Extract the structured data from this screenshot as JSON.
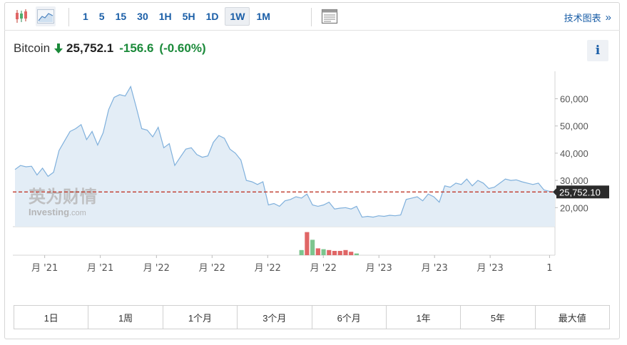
{
  "toolbar": {
    "intervals": [
      "1",
      "5",
      "15",
      "30",
      "1H",
      "5H",
      "1D",
      "1W",
      "1M"
    ],
    "active_interval": "1W",
    "tech_chart_label": "技术图表",
    "tech_chart_arrow": "»"
  },
  "quote": {
    "name": "Bitcoin",
    "price": "25,752.1",
    "change": "-156.6",
    "change_pct": "(-0.60%)",
    "direction": "down"
  },
  "info_label": "i",
  "colors": {
    "accent": "#1a5ea7",
    "down": "#1b8a3a",
    "line": "#7fb0dc",
    "area": "#e3edf6",
    "ref_line": "#c0392b",
    "vol_up": "#7cc58e",
    "vol_down": "#e06666"
  },
  "chart_data": {
    "type": "area",
    "y_unit_ticks": [
      "60,000",
      "50,000",
      "40,000",
      "30,000",
      "20,000"
    ],
    "y_tick_values": [
      60000,
      50000,
      40000,
      30000,
      20000
    ],
    "ylim": [
      13000,
      68000
    ],
    "current_value_label": "25,752.10",
    "current_value": 25752.1,
    "x_tick_labels": [
      "月 '21",
      "月 '21",
      "月 '22",
      "月 '22",
      "月 '22",
      "月 '22",
      "月 '23",
      "月 '23",
      "月 '23",
      "1"
    ],
    "x_tick_positions": [
      0.055,
      0.158,
      0.262,
      0.365,
      0.468,
      0.571,
      0.674,
      0.777,
      0.88,
      0.99
    ],
    "grid": false,
    "watermark": {
      "cn": "英为财情",
      "en_main": "Investing",
      "en_suffix": ".com"
    },
    "series": [
      {
        "values": [
          34000,
          35500,
          35000,
          35200,
          32000,
          34500,
          31500,
          33000,
          41000,
          44500,
          48000,
          49000,
          50500,
          45000,
          48000,
          43000,
          47500,
          56000,
          60500,
          61500,
          61000,
          64500,
          57000,
          49000,
          48500,
          46000,
          49500,
          42000,
          43500,
          35500,
          38500,
          41500,
          42000,
          39500,
          38500,
          39000,
          44000,
          46500,
          45500,
          41500,
          40000,
          37500,
          30000,
          29500,
          28500,
          29500,
          21000,
          21500,
          20500,
          22500,
          23000,
          24000,
          23500,
          25000,
          21000,
          20500,
          21000,
          22000,
          19500,
          19800,
          20000,
          19500,
          20500,
          16500,
          16800,
          16500,
          17000,
          16800,
          17200,
          17000,
          17300,
          23000,
          23500,
          24000,
          22500,
          25000,
          24000,
          22000,
          28000,
          27500,
          29000,
          28500,
          30500,
          28000,
          30000,
          29000,
          27000,
          27500,
          29000,
          30500,
          30000,
          30200,
          29500,
          29000,
          28500,
          29000,
          26500,
          26000,
          25752
        ]
      }
    ],
    "volume": [
      {
        "i": 52,
        "v": 6,
        "up": true
      },
      {
        "i": 53,
        "v": 27,
        "up": false
      },
      {
        "i": 54,
        "v": 18,
        "up": true
      },
      {
        "i": 55,
        "v": 8,
        "up": false
      },
      {
        "i": 56,
        "v": 7,
        "up": true
      },
      {
        "i": 57,
        "v": 6,
        "up": false
      },
      {
        "i": 58,
        "v": 5,
        "up": false
      },
      {
        "i": 59,
        "v": 5,
        "up": false
      },
      {
        "i": 60,
        "v": 6,
        "up": false
      },
      {
        "i": 61,
        "v": 4,
        "up": false
      },
      {
        "i": 62,
        "v": 2,
        "up": true
      }
    ]
  },
  "periods": [
    "1日",
    "1周",
    "1个月",
    "3个月",
    "6个月",
    "1年",
    "5年",
    "最大値"
  ]
}
